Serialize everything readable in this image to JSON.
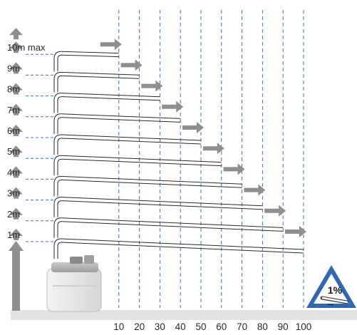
{
  "y_levels": [
    {
      "label": "1m",
      "max_length": 100
    },
    {
      "label": "2m",
      "max_length": 90
    },
    {
      "label": "3m",
      "max_length": 80
    },
    {
      "label": "4m",
      "max_length": 70
    },
    {
      "label": "5m",
      "max_length": 60
    },
    {
      "label": "6m",
      "max_length": 50
    },
    {
      "label": "7m",
      "max_length": 40
    },
    {
      "label": "8m",
      "max_length": 30
    },
    {
      "label": "9m",
      "max_length": 20
    },
    {
      "label": "10m max",
      "max_length": 10
    }
  ],
  "x_ticks": [
    "10",
    "20",
    "30",
    "40",
    "50",
    "60",
    "70",
    "80",
    "90",
    "100"
  ],
  "slope_sign": {
    "text": "1%",
    "icon": "pipe-slope-icon"
  },
  "pump_icon": "pump-unit-icon",
  "colors": {
    "arrow": "#8f8f8f",
    "guide": "#3b73b9",
    "pipe": "#2a2a2a",
    "floor": "#e2e2e2",
    "triangle": "#2f68b5"
  }
}
